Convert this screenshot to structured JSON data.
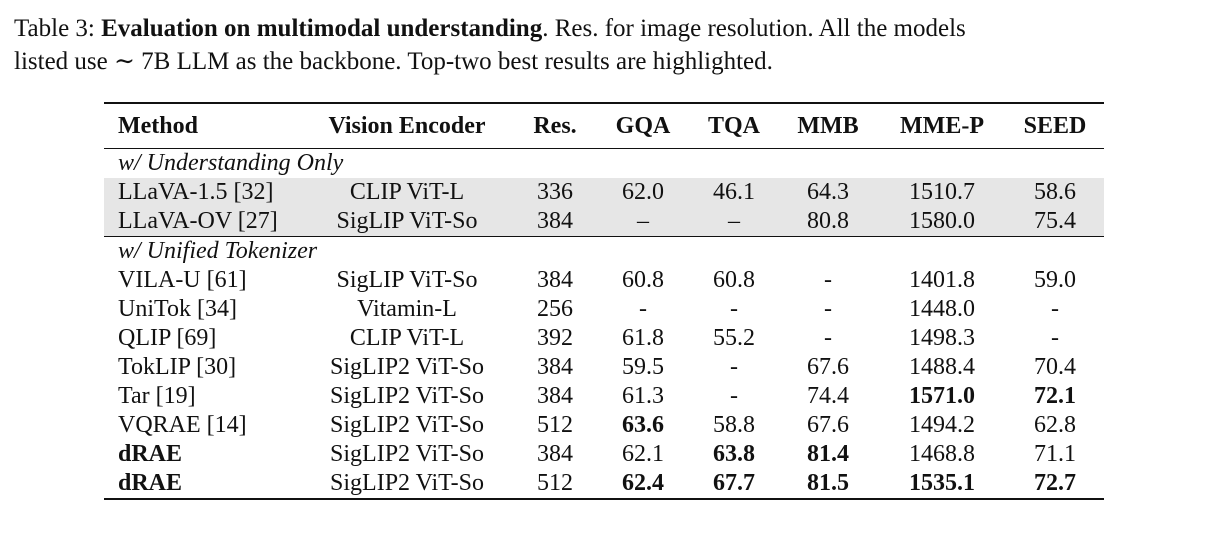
{
  "caption": {
    "label": "Table 3:",
    "title": "Evaluation on multimodal understanding",
    "text_line1": ". Res. for image resolution. All the models",
    "text_line2": "listed use ∼ 7B LLM as the backbone. Top-two best results are highlighted."
  },
  "table": {
    "headers": [
      "Method",
      "Vision Encoder",
      "Res.",
      "GQA",
      "TQA",
      "MMB",
      "MME-P",
      "SEED"
    ],
    "sections": [
      {
        "label": "w/ Understanding Only",
        "shaded": true,
        "rows": [
          {
            "cells": [
              "LLaVA-1.5 [32]",
              "CLIP ViT-L",
              "336",
              "62.0",
              "46.1",
              "64.3",
              "1510.7",
              "58.6"
            ],
            "bold": [
              false,
              false,
              false,
              false,
              false,
              false,
              false,
              false
            ]
          },
          {
            "cells": [
              "LLaVA-OV [27]",
              "SigLIP ViT-So",
              "384",
              "–",
              "–",
              "80.8",
              "1580.0",
              "75.4"
            ],
            "bold": [
              false,
              false,
              false,
              false,
              false,
              false,
              false,
              false
            ]
          }
        ]
      },
      {
        "label": "w/ Unified Tokenizer",
        "shaded": false,
        "rows": [
          {
            "cells": [
              "VILA-U [61]",
              "SigLIP ViT-So",
              "384",
              "60.8",
              "60.8",
              "-",
              "1401.8",
              "59.0"
            ],
            "bold": [
              false,
              false,
              false,
              false,
              false,
              false,
              false,
              false
            ]
          },
          {
            "cells": [
              "UniTok [34]",
              "Vitamin-L",
              "256",
              "-",
              "-",
              "-",
              "1448.0",
              "-"
            ],
            "bold": [
              false,
              false,
              false,
              false,
              false,
              false,
              false,
              false
            ]
          },
          {
            "cells": [
              "QLIP [69]",
              "CLIP ViT-L",
              "392",
              "61.8",
              "55.2",
              "-",
              "1498.3",
              "-"
            ],
            "bold": [
              false,
              false,
              false,
              false,
              false,
              false,
              false,
              false
            ]
          },
          {
            "cells": [
              "TokLIP [30]",
              "SigLIP2 ViT-So",
              "384",
              "59.5",
              "-",
              "67.6",
              "1488.4",
              "70.4"
            ],
            "bold": [
              false,
              false,
              false,
              false,
              false,
              false,
              false,
              false
            ]
          },
          {
            "cells": [
              "Tar [19]",
              "SigLIP2 ViT-So",
              "384",
              "61.3",
              "-",
              "74.4",
              "1571.0",
              "72.1"
            ],
            "bold": [
              false,
              false,
              false,
              false,
              false,
              false,
              true,
              true
            ]
          },
          {
            "cells": [
              "VQRAE [14]",
              "SigLIP2 ViT-So",
              "512",
              "63.6",
              "58.8",
              "67.6",
              "1494.2",
              "62.8"
            ],
            "bold": [
              false,
              false,
              false,
              true,
              false,
              false,
              false,
              false
            ]
          },
          {
            "cells": [
              "dRAE",
              "SigLIP2 ViT-So",
              "384",
              "62.1",
              "63.8",
              "81.4",
              "1468.8",
              "71.1"
            ],
            "bold": [
              true,
              false,
              false,
              false,
              true,
              true,
              false,
              false
            ]
          },
          {
            "cells": [
              "dRAE",
              "SigLIP2 ViT-So",
              "512",
              "62.4",
              "67.7",
              "81.5",
              "1535.1",
              "72.7"
            ],
            "bold": [
              true,
              false,
              false,
              true,
              true,
              true,
              true,
              true
            ]
          }
        ]
      }
    ]
  }
}
